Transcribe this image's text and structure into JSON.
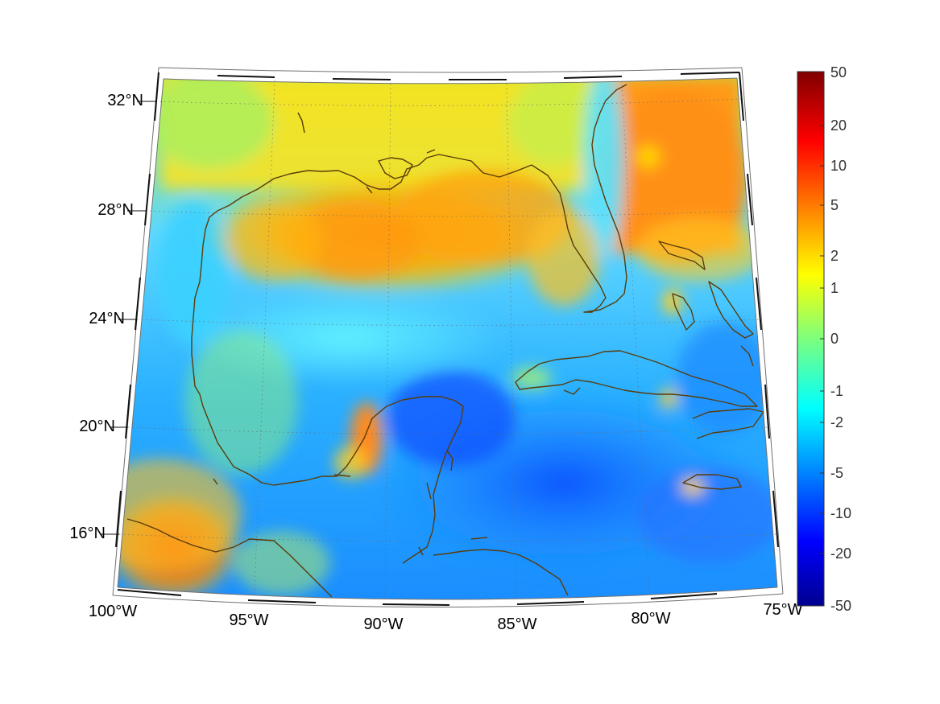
{
  "map": {
    "lat_labels": [
      "32°N",
      "28°N",
      "24°N",
      "20°N",
      "16°N"
    ],
    "lon_labels": [
      "100°W",
      "95°W",
      "90°W",
      "85°W",
      "80°W",
      "75°W"
    ],
    "extent": {
      "lon_min": -100,
      "lon_max": -75,
      "lat_min": 14,
      "lat_max": 33
    },
    "coastline_color": "#5a3c0a",
    "grid": "dotted"
  },
  "colorbar": {
    "ticks": [
      "50",
      "20",
      "10",
      "5",
      "2",
      "1",
      "0",
      "-1",
      "-2",
      "-5",
      "-10",
      "-20",
      "-50"
    ],
    "colormap": "jet",
    "range": [
      -50,
      50
    ],
    "scale": "symmetric-log"
  }
}
